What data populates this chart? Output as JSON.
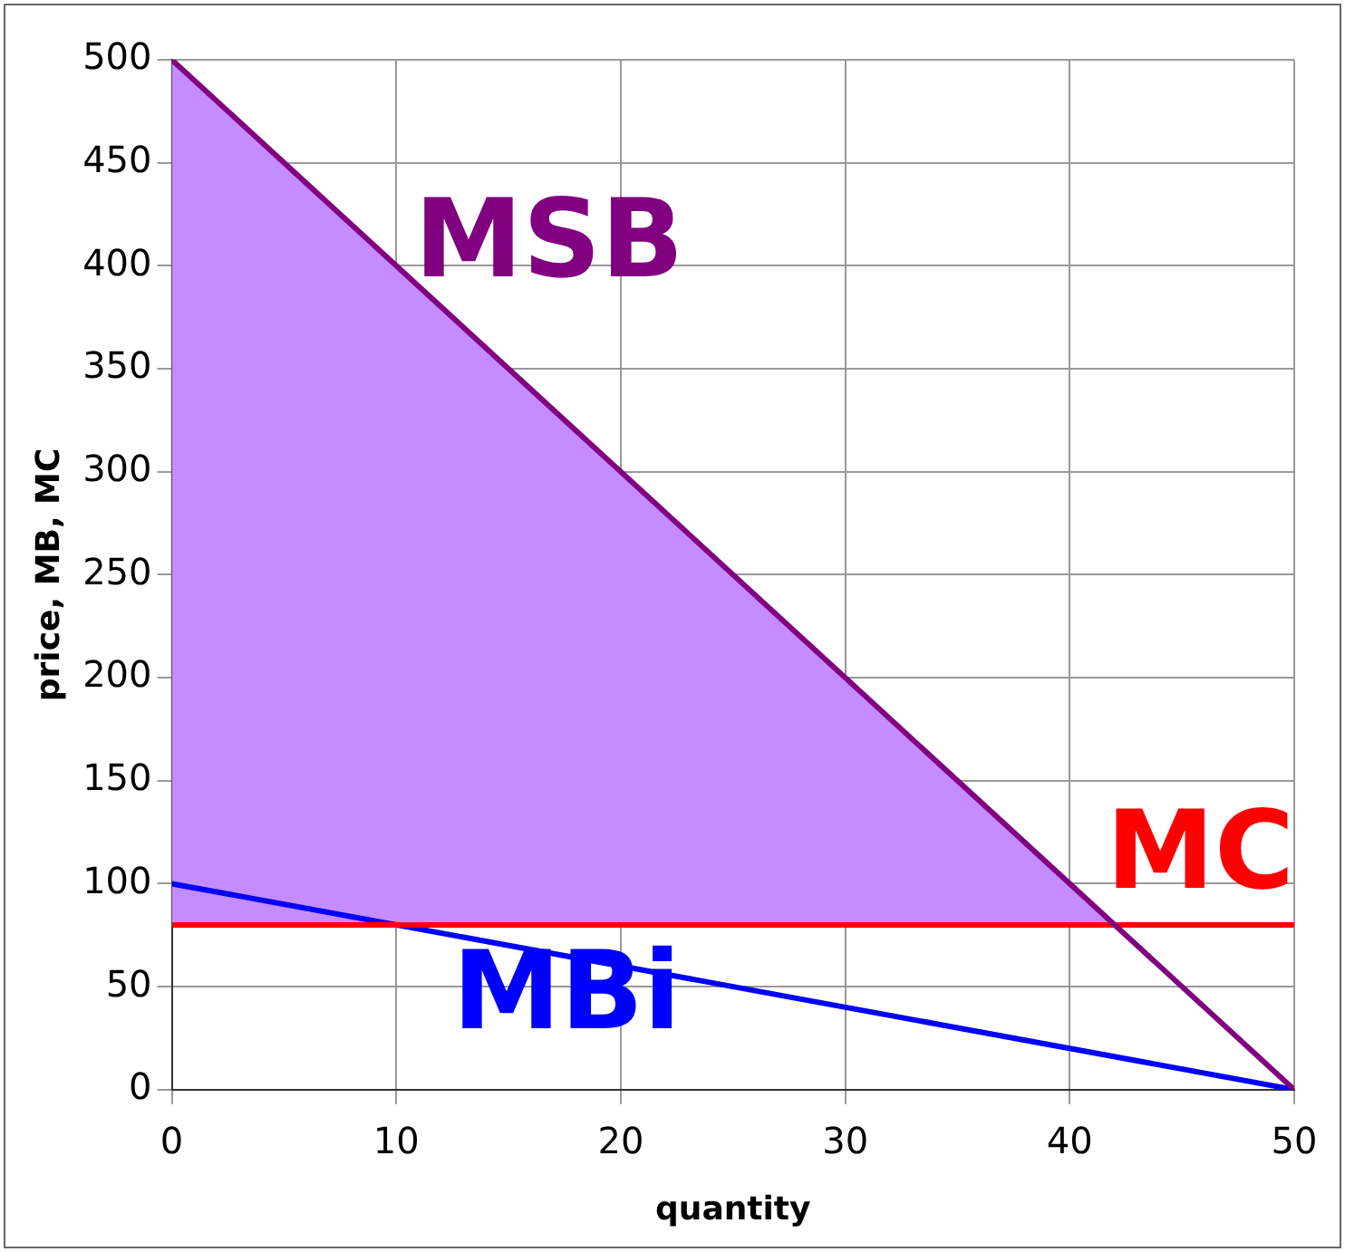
{
  "chart_data": {
    "type": "line",
    "xlabel": "quantity",
    "ylabel": "price, MB, MC",
    "xlim": [
      0,
      50
    ],
    "xticks": [
      0,
      10,
      20,
      30,
      40,
      50
    ],
    "ylim": [
      0,
      500
    ],
    "yticks": [
      0,
      50,
      100,
      150,
      200,
      250,
      300,
      350,
      400,
      450,
      500
    ],
    "grid": true,
    "legend": false,
    "marker": "none",
    "line_style": "solid",
    "series": [
      {
        "type": "area",
        "color": "#c58cff",
        "x": [
          0,
          42,
          0
        ],
        "values": [
          500,
          80,
          80
        ]
      },
      {
        "name": "MSB",
        "color": "#800080",
        "x": [
          0,
          50
        ],
        "values": [
          500,
          0
        ]
      },
      {
        "name": "MC",
        "color": "#ff0000",
        "x": [
          0,
          50
        ],
        "values": [
          80,
          80
        ]
      },
      {
        "name": "MBi",
        "color": "#0000ff",
        "x": [
          0,
          50
        ],
        "values": [
          100,
          0
        ]
      }
    ]
  }
}
